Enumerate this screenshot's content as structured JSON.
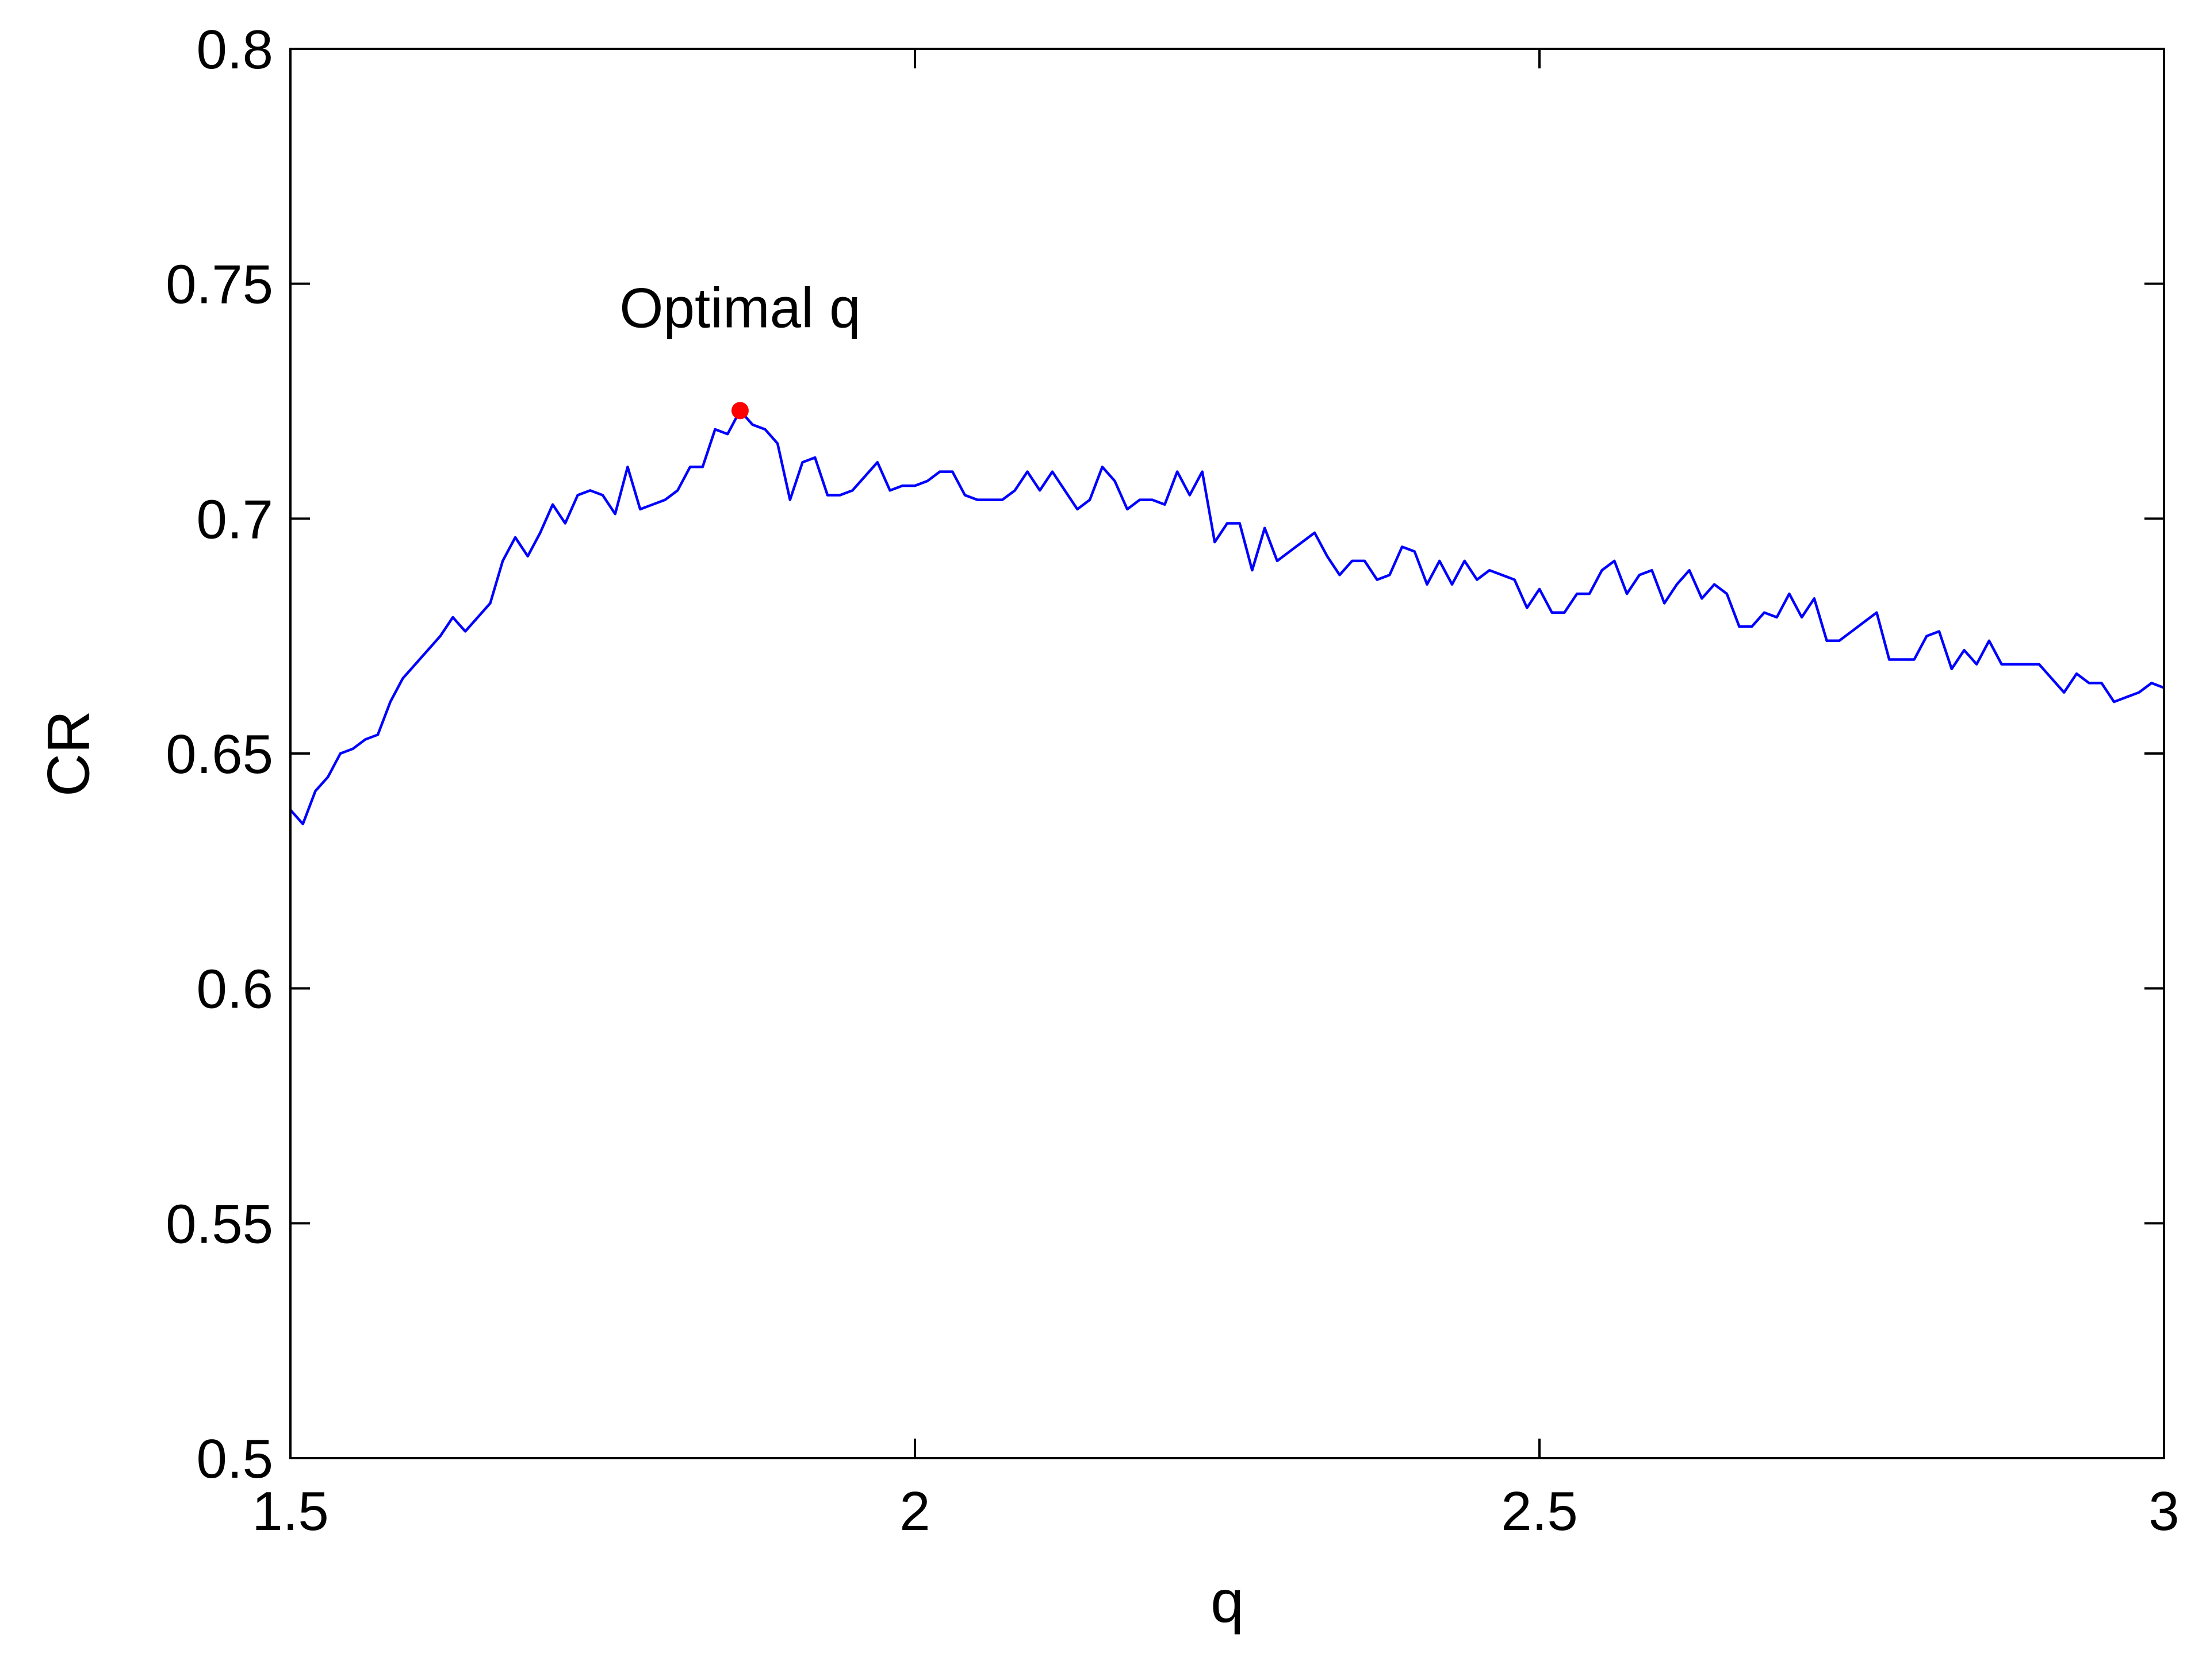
{
  "chart_data": {
    "type": "line",
    "title": "",
    "xlabel": "q",
    "ylabel": "CR",
    "xlim": [
      1.5,
      3
    ],
    "ylim": [
      0.5,
      0.8
    ],
    "xticks": [
      1.5,
      2,
      2.5,
      3
    ],
    "xtick_labels": [
      "1.5",
      "2",
      "2.5",
      "3"
    ],
    "yticks": [
      0.5,
      0.55,
      0.6,
      0.65,
      0.7,
      0.75,
      0.8
    ],
    "ytick_labels": [
      "0.5",
      "0.55",
      "0.6",
      "0.65",
      "0.7",
      "0.75",
      "0.8"
    ],
    "grid": false,
    "legend": "none",
    "series": [
      {
        "color": "#0000ff",
        "x": [
          1.5,
          1.51,
          1.52,
          1.53,
          1.54,
          1.55,
          1.56,
          1.57,
          1.58,
          1.59,
          1.6,
          1.61,
          1.62,
          1.63,
          1.64,
          1.65,
          1.66,
          1.67,
          1.68,
          1.69,
          1.7,
          1.71,
          1.72,
          1.73,
          1.74,
          1.75,
          1.76,
          1.77,
          1.78,
          1.79,
          1.8,
          1.81,
          1.82,
          1.83,
          1.84,
          1.85,
          1.86,
          1.87,
          1.88,
          1.89,
          1.9,
          1.91,
          1.92,
          1.93,
          1.94,
          1.95,
          1.96,
          1.97,
          1.98,
          1.99,
          2.0,
          2.01,
          2.02,
          2.03,
          2.04,
          2.05,
          2.06,
          2.07,
          2.08,
          2.09,
          2.1,
          2.11,
          2.12,
          2.13,
          2.14,
          2.15,
          2.16,
          2.17,
          2.18,
          2.19,
          2.2,
          2.21,
          2.22,
          2.23,
          2.24,
          2.25,
          2.26,
          2.27,
          2.28,
          2.29,
          2.3,
          2.31,
          2.32,
          2.33,
          2.34,
          2.35,
          2.36,
          2.37,
          2.38,
          2.39,
          2.4,
          2.41,
          2.42,
          2.43,
          2.44,
          2.45,
          2.46,
          2.47,
          2.48,
          2.49,
          2.5,
          2.51,
          2.52,
          2.53,
          2.54,
          2.55,
          2.56,
          2.57,
          2.58,
          2.59,
          2.6,
          2.61,
          2.62,
          2.63,
          2.64,
          2.65,
          2.66,
          2.67,
          2.68,
          2.69,
          2.7,
          2.71,
          2.72,
          2.73,
          2.74,
          2.75,
          2.76,
          2.77,
          2.78,
          2.79,
          2.8,
          2.81,
          2.82,
          2.83,
          2.84,
          2.85,
          2.86,
          2.87,
          2.88,
          2.89,
          2.9,
          2.91,
          2.92,
          2.93,
          2.94,
          2.95,
          2.96,
          2.97,
          2.98,
          2.99,
          3.0
        ],
        "y": [
          0.638,
          0.635,
          0.642,
          0.645,
          0.65,
          0.651,
          0.653,
          0.654,
          0.661,
          0.666,
          0.669,
          0.672,
          0.675,
          0.679,
          0.676,
          0.679,
          0.682,
          0.691,
          0.696,
          0.692,
          0.697,
          0.703,
          0.699,
          0.705,
          0.706,
          0.705,
          0.701,
          0.711,
          0.702,
          0.703,
          0.704,
          0.706,
          0.711,
          0.711,
          0.719,
          0.718,
          0.723,
          0.72,
          0.719,
          0.716,
          0.704,
          0.712,
          0.713,
          0.705,
          0.705,
          0.706,
          0.709,
          0.712,
          0.706,
          0.707,
          0.707,
          0.708,
          0.71,
          0.71,
          0.705,
          0.704,
          0.704,
          0.704,
          0.706,
          0.71,
          0.706,
          0.71,
          0.706,
          0.702,
          0.704,
          0.711,
          0.708,
          0.702,
          0.704,
          0.704,
          0.703,
          0.71,
          0.705,
          0.71,
          0.695,
          0.699,
          0.699,
          0.689,
          0.698,
          0.691,
          0.693,
          0.695,
          0.697,
          0.692,
          0.688,
          0.691,
          0.691,
          0.687,
          0.688,
          0.694,
          0.693,
          0.686,
          0.691,
          0.686,
          0.691,
          0.687,
          0.689,
          0.688,
          0.687,
          0.681,
          0.685,
          0.68,
          0.68,
          0.684,
          0.684,
          0.689,
          0.691,
          0.684,
          0.688,
          0.689,
          0.682,
          0.686,
          0.689,
          0.683,
          0.686,
          0.684,
          0.677,
          0.677,
          0.68,
          0.679,
          0.684,
          0.679,
          0.683,
          0.674,
          0.674,
          0.676,
          0.678,
          0.68,
          0.67,
          0.67,
          0.67,
          0.675,
          0.676,
          0.668,
          0.672,
          0.669,
          0.674,
          0.669,
          0.669,
          0.669,
          0.669,
          0.666,
          0.663,
          0.667,
          0.665,
          0.665,
          0.661,
          0.662,
          0.663,
          0.665,
          0.664
        ]
      }
    ],
    "annotation": {
      "text": "Optimal q",
      "x": 1.86,
      "y": 0.723,
      "marker_color": "#ff0000"
    }
  }
}
